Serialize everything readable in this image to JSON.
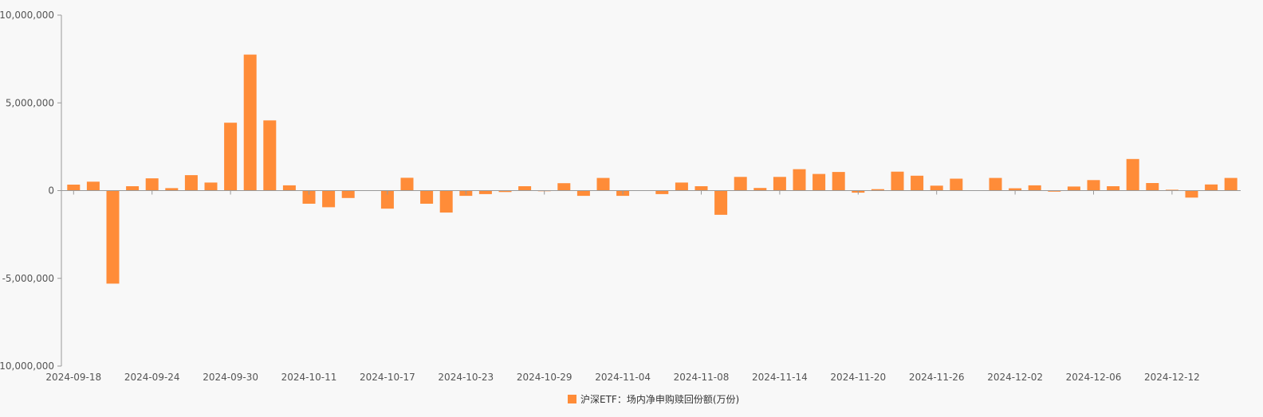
{
  "chart_data": {
    "type": "bar",
    "ylim": [
      -10000000,
      10000000
    ],
    "y_ticks": [
      10000000,
      5000000,
      0,
      -5000000,
      -10000000
    ],
    "y_tick_labels": [
      "10,000,000",
      "5,000,000",
      "0",
      "-5,000,000",
      "-10,000,000"
    ],
    "x_tick_labels": [
      "2024-09-18",
      "2024-09-24",
      "2024-09-30",
      "2024-10-11",
      "2024-10-17",
      "2024-10-23",
      "2024-10-29",
      "2024-11-04",
      "2024-11-08",
      "2024-11-14",
      "2024-11-20",
      "2024-11-26",
      "2024-12-02",
      "2024-12-06",
      "2024-12-12"
    ],
    "tick_every": 4,
    "series": [
      {
        "name": "沪深ETF：场内净申购赎回份额(万份)",
        "color": "#ff8c38",
        "values": [
          340000,
          510000,
          -5300000,
          250000,
          700000,
          140000,
          880000,
          460000,
          3870000,
          7750000,
          4000000,
          300000,
          -750000,
          -950000,
          -420000,
          0,
          -1030000,
          730000,
          -750000,
          -1250000,
          -300000,
          -200000,
          -80000,
          250000,
          -30000,
          420000,
          -300000,
          720000,
          -300000,
          0,
          -200000,
          460000,
          250000,
          -1380000,
          780000,
          150000,
          780000,
          1220000,
          950000,
          1060000,
          -120000,
          80000,
          1080000,
          850000,
          280000,
          680000,
          0,
          720000,
          130000,
          300000,
          -60000,
          230000,
          600000,
          250000,
          1800000,
          430000,
          50000,
          -400000,
          350000,
          720000
        ]
      }
    ],
    "legend": {
      "position": "bottom-center"
    },
    "grid": false
  }
}
